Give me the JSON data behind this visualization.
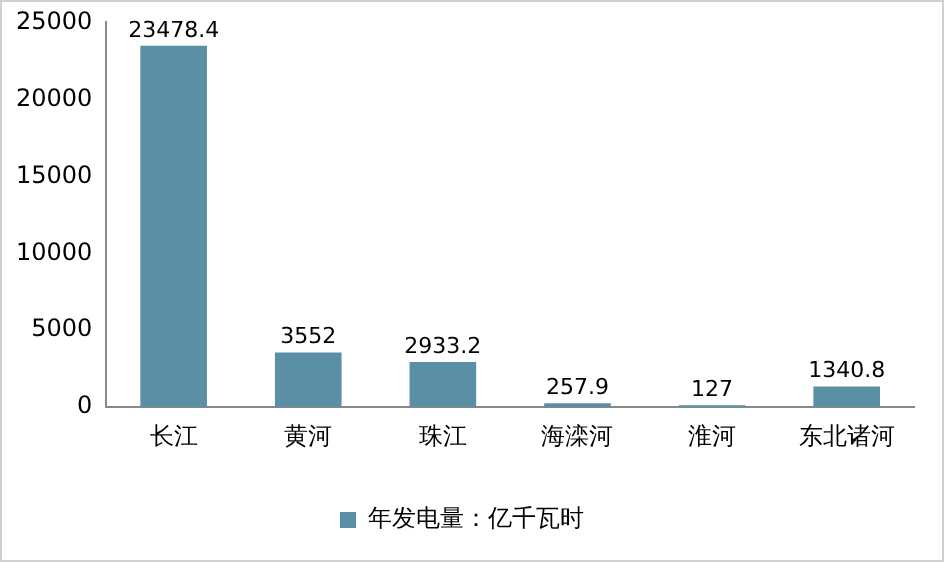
{
  "chart_data": {
    "type": "bar",
    "categories": [
      "长江",
      "黄河",
      "珠江",
      "海滦河",
      "淮河",
      "东北诸河"
    ],
    "series": [
      {
        "name": "年发电量：亿千瓦时",
        "color": "#5b8fa6",
        "values": [
          23478.4,
          3552,
          2933.2,
          257.9,
          127,
          1340.8
        ]
      }
    ],
    "ylim": [
      0,
      25000
    ],
    "yticks": [
      0,
      5000,
      10000,
      15000,
      20000,
      25000
    ],
    "grid": false,
    "legend": "bottom",
    "data_labels": true
  }
}
